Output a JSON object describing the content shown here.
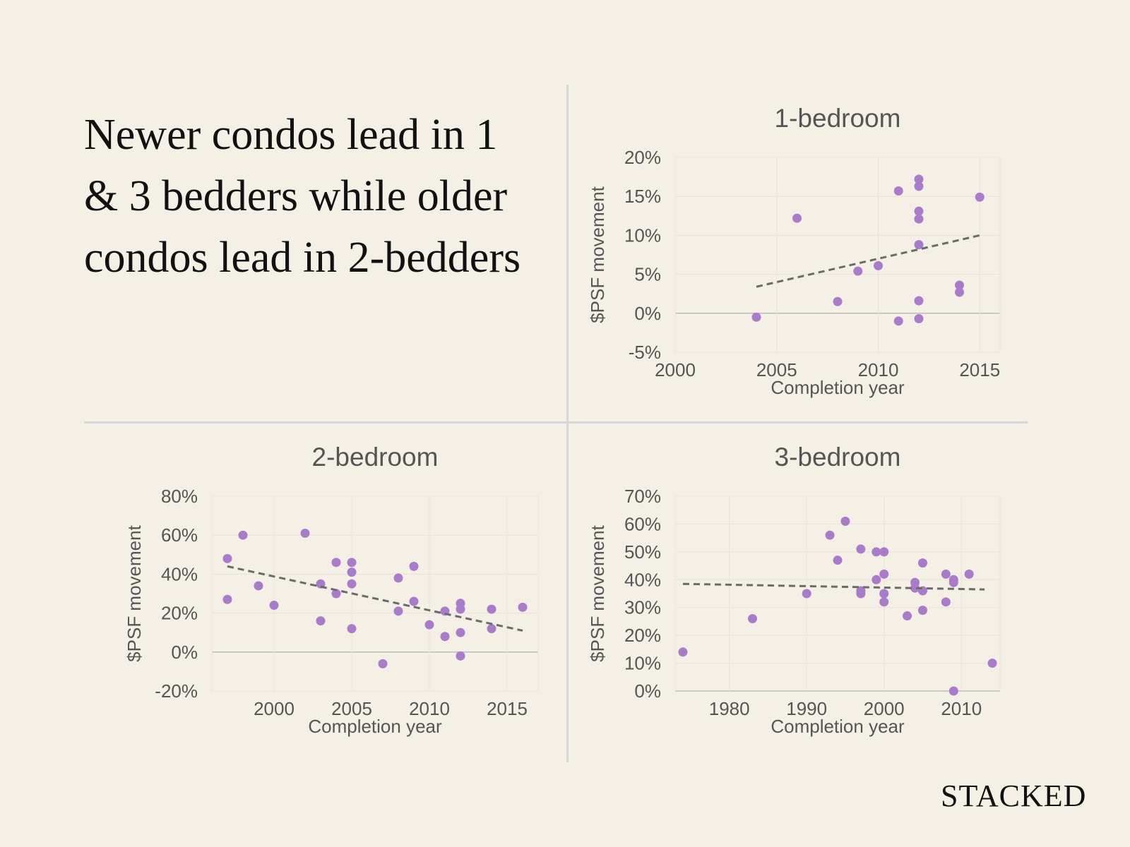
{
  "headline": "Newer condos lead in 1 & 3 bedders while older condos lead in 2-bedders",
  "brand": "STACKED",
  "colors": {
    "background": "#f4f0e6",
    "point": "#a97cc9",
    "trendline": "#6b6b6b",
    "grid": "#ebe3db",
    "zero_line": "#bdbdbd",
    "divider": "#d5d8d8"
  },
  "chart_data": [
    {
      "type": "scatter",
      "title": "1-bedroom",
      "xlabel": "Completion year",
      "ylabel": "$PSF movement",
      "xlim": [
        2000,
        2016
      ],
      "ylim": [
        -5,
        20
      ],
      "xticks": [
        2000,
        2005,
        2010,
        2015
      ],
      "xtick_labels": [
        "2000",
        "2005",
        "2010",
        "2015"
      ],
      "yticks": [
        -5,
        0,
        5,
        10,
        15,
        20
      ],
      "ytick_labels": [
        "-5%",
        "0%",
        "5%",
        "10%",
        "15%",
        "20%"
      ],
      "grid": true,
      "points": [
        [
          2004,
          -0.5
        ],
        [
          2006,
          12.2
        ],
        [
          2008,
          1.5
        ],
        [
          2009,
          5.4
        ],
        [
          2010,
          6.1
        ],
        [
          2011,
          15.7
        ],
        [
          2011,
          -1.0
        ],
        [
          2012,
          17.2
        ],
        [
          2012,
          16.3
        ],
        [
          2012,
          13.1
        ],
        [
          2012,
          12.1
        ],
        [
          2012,
          8.8
        ],
        [
          2012,
          1.6
        ],
        [
          2012,
          -0.7
        ],
        [
          2014,
          3.6
        ],
        [
          2014,
          2.7
        ],
        [
          2015,
          14.9
        ]
      ],
      "trendline": [
        [
          2004,
          3.4
        ],
        [
          2015,
          10.0
        ]
      ]
    },
    {
      "type": "scatter",
      "title": "2-bedroom",
      "xlabel": "Completion year",
      "ylabel": "$PSF movement",
      "xlim": [
        1996,
        2017
      ],
      "ylim": [
        -20,
        80
      ],
      "xticks": [
        2000,
        2005,
        2010,
        2015
      ],
      "xtick_labels": [
        "2000",
        "2005",
        "2010",
        "2015"
      ],
      "yticks": [
        -20,
        0,
        20,
        40,
        60,
        80
      ],
      "ytick_labels": [
        "-20%",
        "0%",
        "20%",
        "40%",
        "60%",
        "80%"
      ],
      "grid": true,
      "points": [
        [
          1997,
          48
        ],
        [
          1997,
          27
        ],
        [
          1998,
          60
        ],
        [
          1999,
          34
        ],
        [
          2000,
          24
        ],
        [
          2002,
          61
        ],
        [
          2003,
          35
        ],
        [
          2003,
          16
        ],
        [
          2004,
          46
        ],
        [
          2004,
          30
        ],
        [
          2005,
          46
        ],
        [
          2005,
          41
        ],
        [
          2005,
          35
        ],
        [
          2005,
          12
        ],
        [
          2007,
          -6
        ],
        [
          2008,
          38
        ],
        [
          2008,
          21
        ],
        [
          2009,
          44
        ],
        [
          2009,
          26
        ],
        [
          2010,
          14
        ],
        [
          2011,
          21
        ],
        [
          2011,
          8
        ],
        [
          2012,
          25
        ],
        [
          2012,
          22
        ],
        [
          2012,
          10
        ],
        [
          2012,
          -2
        ],
        [
          2014,
          22
        ],
        [
          2014,
          12
        ],
        [
          2016,
          23
        ]
      ],
      "trendline": [
        [
          1997,
          44
        ],
        [
          2016,
          11
        ]
      ]
    },
    {
      "type": "scatter",
      "title": "3-bedroom",
      "xlabel": "Completion year",
      "ylabel": "$PSF movement",
      "xlim": [
        1973,
        2015
      ],
      "ylim": [
        0,
        70
      ],
      "xticks": [
        1980,
        1990,
        2000,
        2010
      ],
      "xtick_labels": [
        "1980",
        "1990",
        "2000",
        "2010"
      ],
      "yticks": [
        0,
        10,
        20,
        30,
        40,
        50,
        60,
        70
      ],
      "ytick_labels": [
        "0%",
        "10%",
        "20%",
        "30%",
        "40%",
        "50%",
        "60%",
        "70%"
      ],
      "grid": true,
      "points": [
        [
          1974,
          14
        ],
        [
          1983,
          26
        ],
        [
          1990,
          35
        ],
        [
          1993,
          56
        ],
        [
          1994,
          47
        ],
        [
          1995,
          61
        ],
        [
          1997,
          51
        ],
        [
          1997,
          36
        ],
        [
          1997,
          35
        ],
        [
          1999,
          50
        ],
        [
          1999,
          40
        ],
        [
          2000,
          50
        ],
        [
          2000,
          42
        ],
        [
          2000,
          35
        ],
        [
          2000,
          32
        ],
        [
          2003,
          27
        ],
        [
          2004,
          39
        ],
        [
          2004,
          37
        ],
        [
          2005,
          46
        ],
        [
          2005,
          36
        ],
        [
          2005,
          29
        ],
        [
          2008,
          42
        ],
        [
          2008,
          32
        ],
        [
          2009,
          40
        ],
        [
          2009,
          39
        ],
        [
          2009,
          0
        ],
        [
          2011,
          42
        ],
        [
          2014,
          10
        ]
      ],
      "trendline": [
        [
          1974,
          38.5
        ],
        [
          2013,
          36.5
        ]
      ]
    }
  ]
}
